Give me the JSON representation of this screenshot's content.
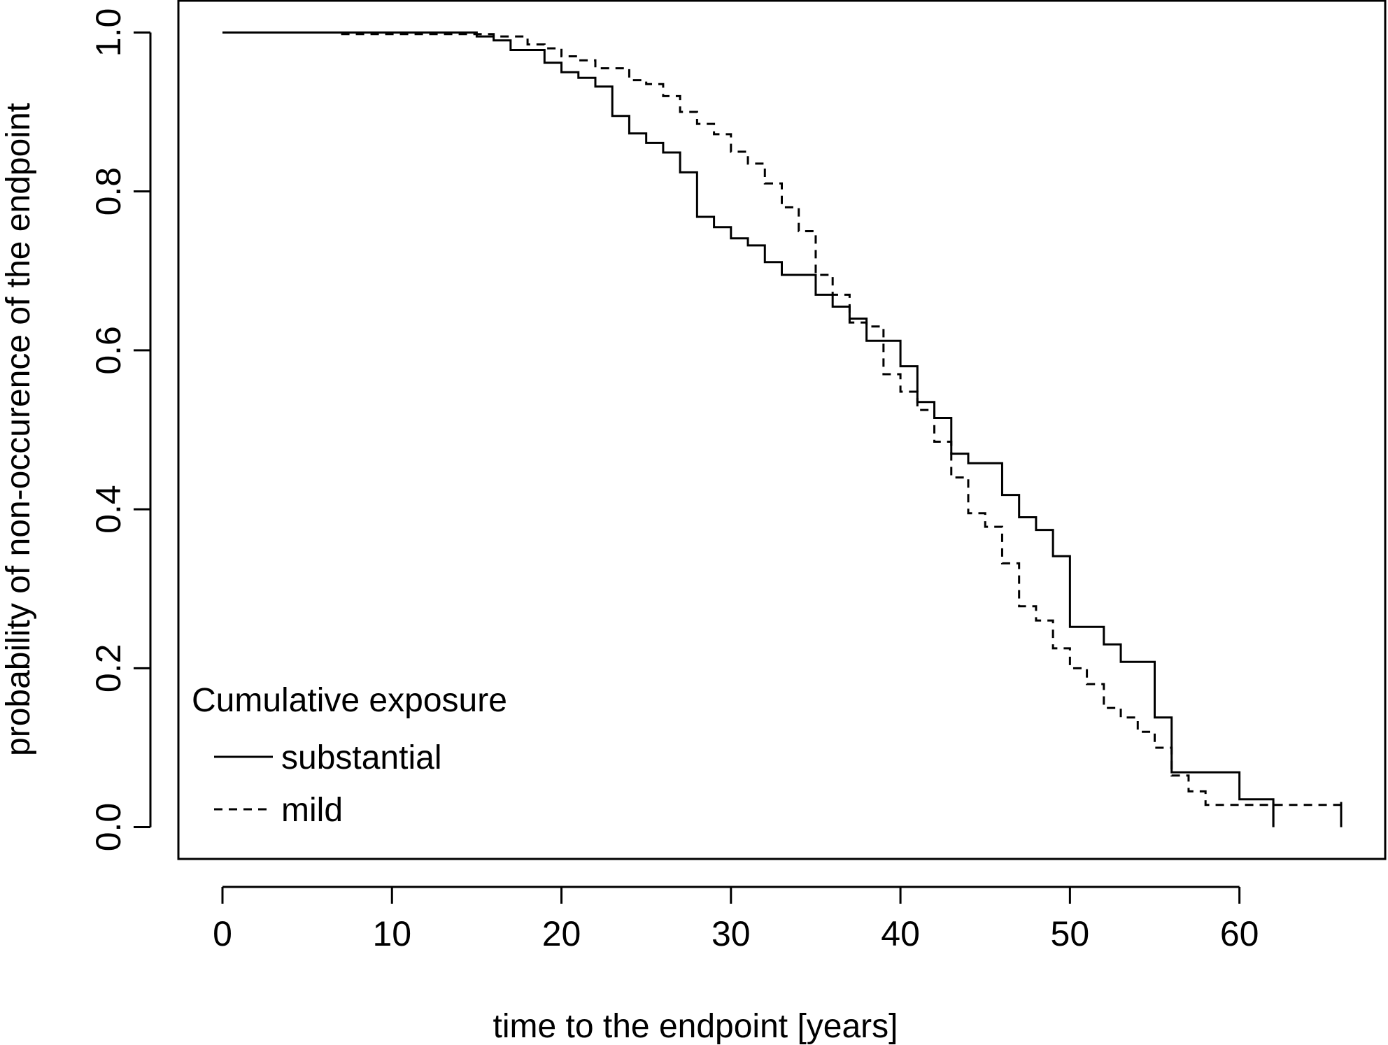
{
  "chart_data": {
    "type": "line",
    "step": true,
    "xlabel": "time to the endpoint [years]",
    "ylabel": "probability of non-occurence of the endpoint",
    "xlim": [
      -2.6,
      68.6
    ],
    "ylim": [
      -0.04,
      1.04
    ],
    "x_ticks": [
      0,
      10,
      20,
      30,
      40,
      50,
      60
    ],
    "y_ticks": [
      0.0,
      0.2,
      0.4,
      0.6,
      0.8,
      1.0
    ],
    "x_tick_labels": [
      "0",
      "10",
      "20",
      "30",
      "40",
      "50",
      "60"
    ],
    "y_tick_labels": [
      "0.0",
      "0.2",
      "0.4",
      "0.6",
      "0.8",
      "1.0"
    ],
    "grid": false,
    "legend": {
      "title": "Cumulative exposure",
      "position": "bottom-left"
    },
    "series": [
      {
        "name": "substantial",
        "line_style": "solid",
        "color": "#000000",
        "x": [
          0,
          15,
          16,
          17,
          19,
          20,
          21,
          22,
          23,
          24,
          25,
          26,
          27,
          28,
          29,
          30,
          31,
          32,
          33,
          35,
          36,
          37,
          38,
          40,
          41,
          42,
          43,
          44,
          46,
          47,
          48,
          49,
          50,
          52,
          53,
          55,
          56,
          60,
          62
        ],
        "y": [
          1.0,
          0.995,
          0.99,
          0.978,
          0.962,
          0.95,
          0.943,
          0.932,
          0.895,
          0.873,
          0.861,
          0.849,
          0.824,
          0.768,
          0.755,
          0.741,
          0.732,
          0.711,
          0.695,
          0.67,
          0.655,
          0.64,
          0.612,
          0.58,
          0.535,
          0.515,
          0.47,
          0.458,
          0.418,
          0.39,
          0.374,
          0.341,
          0.252,
          0.23,
          0.208,
          0.138,
          0.069,
          0.035,
          0.0
        ]
      },
      {
        "name": "mild",
        "line_style": "dashed",
        "color": "#000000",
        "x": [
          7,
          16,
          18,
          19,
          20,
          21,
          22,
          24,
          25,
          26,
          27,
          28,
          29,
          30,
          31,
          32,
          33,
          34,
          35,
          36,
          37,
          38,
          39,
          40,
          41,
          42,
          43,
          44,
          45,
          46,
          47,
          48,
          49,
          50,
          51,
          52,
          53,
          54,
          55,
          56,
          57,
          58,
          66
        ],
        "y": [
          0.998,
          0.995,
          0.985,
          0.98,
          0.97,
          0.965,
          0.955,
          0.94,
          0.935,
          0.92,
          0.9,
          0.885,
          0.872,
          0.85,
          0.835,
          0.81,
          0.78,
          0.75,
          0.695,
          0.67,
          0.635,
          0.63,
          0.57,
          0.548,
          0.525,
          0.485,
          0.44,
          0.395,
          0.378,
          0.332,
          0.278,
          0.26,
          0.225,
          0.2,
          0.18,
          0.15,
          0.138,
          0.12,
          0.1,
          0.065,
          0.045,
          0.028,
          0.0
        ]
      }
    ]
  }
}
